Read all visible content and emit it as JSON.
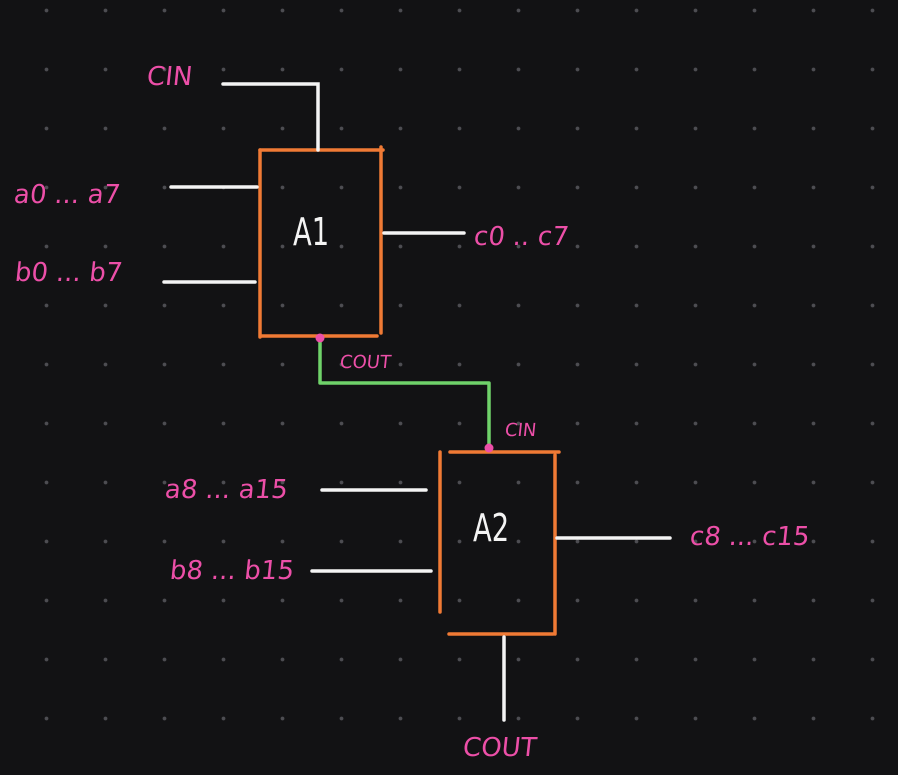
{
  "blocks": [
    {
      "name": "A1"
    },
    {
      "name": "A2"
    }
  ],
  "labels": {
    "a1_cin": "CIN",
    "a1_a_in": "a0 ... a7",
    "a1_b_in": "b0 ... b7",
    "a1_out": "c0 .. c7",
    "a1_cout": "COUT",
    "a2_cin": "CIN",
    "a2_a_in": "a8 ... a15",
    "a2_b_in": "b8 ... b15",
    "a2_out": "c8 ... c15",
    "a2_cout": "COUT"
  },
  "colors": {
    "background": "#121214",
    "block_outline": "#f07a35",
    "wire": "#f4f4f4",
    "carry_link": "#6fd26a",
    "label": "#ec4fa8"
  }
}
